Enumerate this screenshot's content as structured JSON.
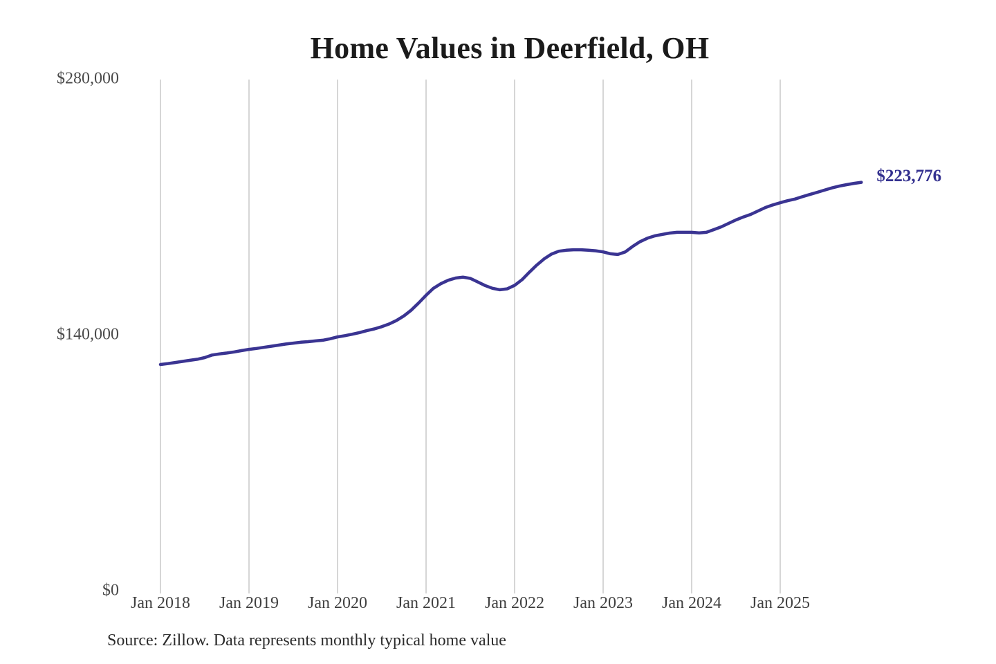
{
  "title": "Home Values in Deerfield, OH",
  "end_value_label": "$223,776",
  "source_note": "Source: Zillow. Data represents monthly typical home value",
  "colors": {
    "line": "#3a3492",
    "end_label": "#33308f",
    "grid": "#cccccc",
    "title": "#1b1b1b",
    "axis_label": "#404040",
    "background": "#ffffff"
  },
  "chart_data": {
    "type": "line",
    "title": "Home Values in Deerfield, OH",
    "xlabel": "",
    "ylabel": "",
    "x_start": "2018-01",
    "x_step": "1 month",
    "x_end": "2025-12",
    "ylim": [
      0,
      280000
    ],
    "grid": "vertical yearly gridlines only",
    "legend": "none",
    "y_ticks": [
      {
        "label": "$0",
        "value": 0
      },
      {
        "label": "$140,000",
        "value": 140000
      },
      {
        "label": "$280,000",
        "value": 280000
      }
    ],
    "x_tick_labels": [
      "Jan 2018",
      "Jan 2019",
      "Jan 2020",
      "Jan 2021",
      "Jan 2022",
      "Jan 2023",
      "Jan 2024",
      "Jan 2025"
    ],
    "series": [
      {
        "name": "Monthly typical home value",
        "values": [
          124100,
          124600,
          125200,
          125800,
          126400,
          127000,
          127900,
          129300,
          129900,
          130400,
          131000,
          131700,
          132400,
          132900,
          133500,
          134100,
          134700,
          135300,
          135800,
          136300,
          136600,
          137000,
          137400,
          138200,
          139200,
          139900,
          140700,
          141600,
          142700,
          143600,
          144800,
          146300,
          148200,
          150700,
          153900,
          157800,
          162000,
          165800,
          168300,
          170200,
          171400,
          171900,
          171200,
          169300,
          167300,
          165800,
          165000,
          165500,
          167400,
          170500,
          174600,
          178500,
          181900,
          184500,
          186100,
          186600,
          186900,
          186900,
          186600,
          186300,
          185700,
          184700,
          184300,
          185700,
          188700,
          191300,
          193200,
          194500,
          195300,
          196000,
          196400,
          196400,
          196400,
          196100,
          196400,
          197900,
          199400,
          201300,
          203200,
          204800,
          206200,
          208100,
          210000,
          211400,
          212600,
          213700,
          214600,
          215900,
          217100,
          218300,
          219500,
          220700,
          221700,
          222500,
          223200,
          223776
        ]
      }
    ],
    "last_value": 223776
  }
}
